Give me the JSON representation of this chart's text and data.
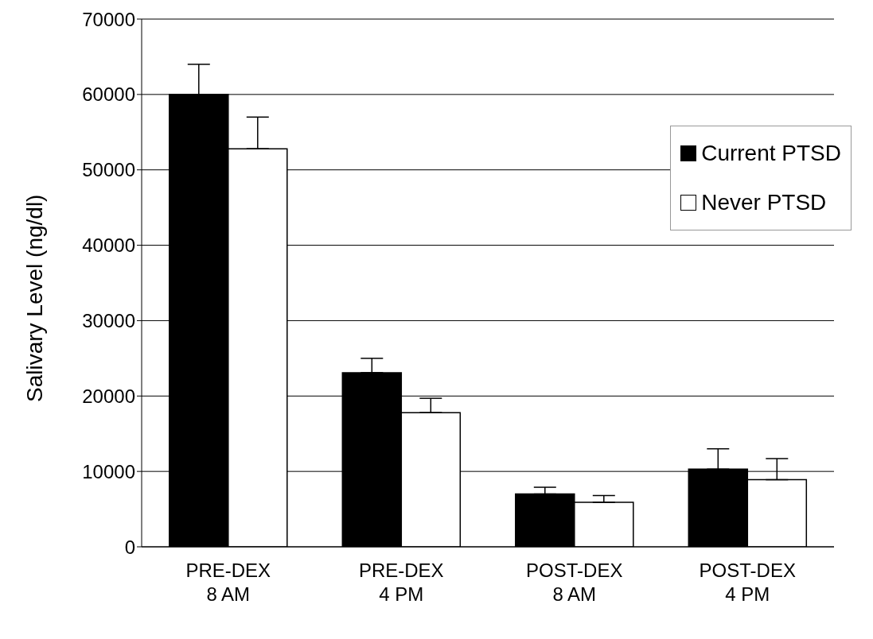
{
  "chart_data": {
    "type": "bar",
    "ylabel": "Salivary  Level (ng/dl)",
    "categories": [
      "PRE-DEX\n8 AM",
      "PRE-DEX\n4 PM",
      "POST-DEX\n8 AM",
      "POST-DEX\n4 PM"
    ],
    "series": [
      {
        "name": "Current PTSD",
        "color": "#000000",
        "values": [
          60000,
          23100,
          7000,
          10300
        ],
        "errors": [
          [
            60000,
            64000
          ],
          [
            23100,
            25000
          ],
          [
            7000,
            7900
          ],
          [
            10300,
            13000
          ]
        ]
      },
      {
        "name": "Never PTSD",
        "color": "#ffffff",
        "values": [
          52800,
          17800,
          5900,
          8900
        ],
        "errors": [
          [
            52800,
            57000
          ],
          [
            17800,
            19700
          ],
          [
            5900,
            6800
          ],
          [
            8900,
            11700
          ]
        ]
      }
    ],
    "ylim": [
      0,
      70000
    ],
    "yticks": [
      0,
      10000,
      20000,
      30000,
      40000,
      50000,
      60000,
      70000
    ],
    "grid": "y",
    "legend": "top right"
  }
}
